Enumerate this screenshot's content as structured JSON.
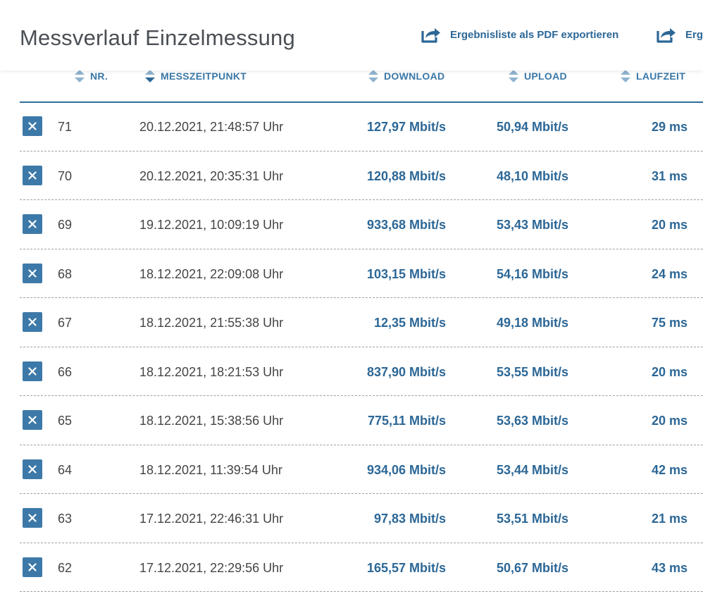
{
  "header": {
    "title": "Messverlauf Einzelmessung",
    "export_pdf_label": "Ergebnisliste als PDF exportieren",
    "export_second_label": "Erg"
  },
  "columns": {
    "nr": "NR.",
    "time": "MESSZEITPUNKT",
    "download": "DOWNLOAD",
    "upload": "UPLOAD",
    "latency": "LAUFZEIT"
  },
  "rows": [
    {
      "nr": "71",
      "time": "20.12.2021, 21:48:57 Uhr",
      "download": "127,97 Mbit/s",
      "upload": "50,94 Mbit/s",
      "latency": "29 ms"
    },
    {
      "nr": "70",
      "time": "20.12.2021, 20:35:31 Uhr",
      "download": "120,88 Mbit/s",
      "upload": "48,10 Mbit/s",
      "latency": "31 ms"
    },
    {
      "nr": "69",
      "time": "19.12.2021, 10:09:19 Uhr",
      "download": "933,68 Mbit/s",
      "upload": "53,43 Mbit/s",
      "latency": "20 ms"
    },
    {
      "nr": "68",
      "time": "18.12.2021, 22:09:08 Uhr",
      "download": "103,15 Mbit/s",
      "upload": "54,16 Mbit/s",
      "latency": "24 ms"
    },
    {
      "nr": "67",
      "time": "18.12.2021, 21:55:38 Uhr",
      "download": "12,35 Mbit/s",
      "upload": "49,18 Mbit/s",
      "latency": "75 ms"
    },
    {
      "nr": "66",
      "time": "18.12.2021, 18:21:53 Uhr",
      "download": "837,90 Mbit/s",
      "upload": "53,55 Mbit/s",
      "latency": "20 ms"
    },
    {
      "nr": "65",
      "time": "18.12.2021, 15:38:56 Uhr",
      "download": "775,11 Mbit/s",
      "upload": "53,63 Mbit/s",
      "latency": "20 ms"
    },
    {
      "nr": "64",
      "time": "18.12.2021, 11:39:54 Uhr",
      "download": "934,06 Mbit/s",
      "upload": "53,44 Mbit/s",
      "latency": "42 ms"
    },
    {
      "nr": "63",
      "time": "17.12.2021, 22:46:31 Uhr",
      "download": "97,83 Mbit/s",
      "upload": "53,51 Mbit/s",
      "latency": "21 ms"
    },
    {
      "nr": "62",
      "time": "17.12.2021, 22:29:56 Uhr",
      "download": "165,57 Mbit/s",
      "upload": "50,67 Mbit/s",
      "latency": "43 ms"
    }
  ],
  "icons": {
    "export": "export-icon",
    "sort": "sort-icon",
    "delete": "close-icon"
  },
  "colors": {
    "accent": "#2c6796",
    "header_text": "#3a78a8",
    "delete_button": "#3d79a8",
    "title": "#4a4f55"
  }
}
